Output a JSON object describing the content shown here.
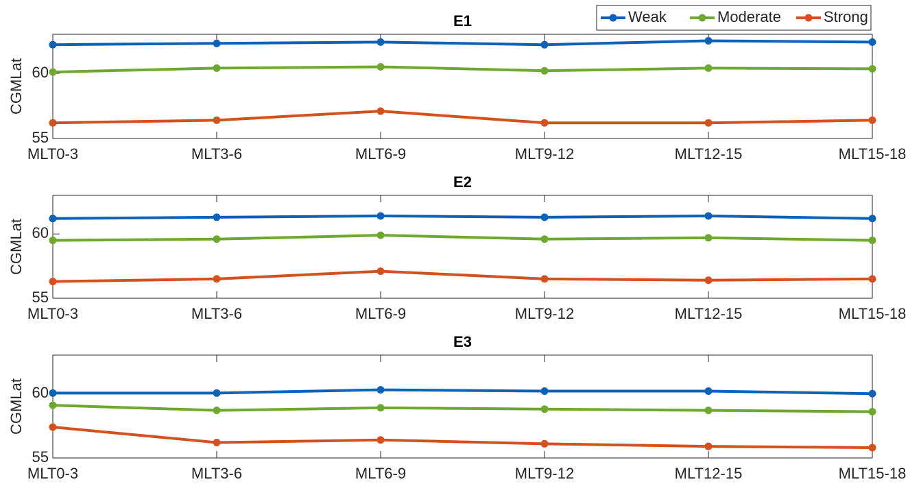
{
  "chart_data": [
    {
      "type": "line",
      "title": "E1",
      "ylabel": "CGMLat",
      "categories": [
        "MLT0-3",
        "MLT3-6",
        "MLT6-9",
        "MLT9-12",
        "MLT12-15",
        "MLT15-18"
      ],
      "series": [
        {
          "name": "Weak",
          "color": "#0d62b8",
          "values": [
            62.2,
            62.3,
            62.4,
            62.2,
            62.5,
            62.4
          ]
        },
        {
          "name": "Moderate",
          "color": "#6fa830",
          "values": [
            60.1,
            60.4,
            60.5,
            60.2,
            60.4,
            60.35
          ]
        },
        {
          "name": "Strong",
          "color": "#d4501c",
          "values": [
            56.2,
            56.4,
            57.1,
            56.2,
            56.2,
            56.4
          ]
        }
      ],
      "ylim": [
        55,
        63
      ],
      "yticks": [
        55,
        60
      ],
      "legend": "upper right"
    },
    {
      "type": "line",
      "title": "E2",
      "ylabel": "CGMLat",
      "categories": [
        "MLT0-3",
        "MLT3-6",
        "MLT6-9",
        "MLT9-12",
        "MLT12-15",
        "MLT15-18"
      ],
      "series": [
        {
          "color": "#0d62b8",
          "values": [
            61.2,
            61.3,
            61.4,
            61.3,
            61.4,
            61.2
          ]
        },
        {
          "color": "#6fa830",
          "values": [
            59.5,
            59.6,
            59.9,
            59.6,
            59.7,
            59.5
          ]
        },
        {
          "color": "#d4501c",
          "values": [
            56.3,
            56.5,
            57.1,
            56.5,
            56.4,
            56.5
          ]
        }
      ],
      "ylim": [
        55,
        63
      ],
      "yticks": [
        55,
        60
      ]
    },
    {
      "type": "line",
      "title": "E3",
      "ylabel": "CGMLat",
      "categories": [
        "MLT0-3",
        "MLT3-6",
        "MLT6-9",
        "MLT9-12",
        "MLT12-15",
        "MLT15-18"
      ],
      "series": [
        {
          "color": "#0d62b8",
          "values": [
            60.05,
            60.05,
            60.3,
            60.2,
            60.2,
            60.0
          ]
        },
        {
          "color": "#6fa830",
          "values": [
            59.1,
            58.7,
            58.9,
            58.8,
            58.7,
            58.6
          ]
        },
        {
          "color": "#d4501c",
          "values": [
            57.4,
            56.2,
            56.4,
            56.1,
            55.9,
            55.8
          ]
        }
      ],
      "ylim": [
        55,
        63
      ],
      "yticks": [
        55,
        60
      ]
    }
  ]
}
